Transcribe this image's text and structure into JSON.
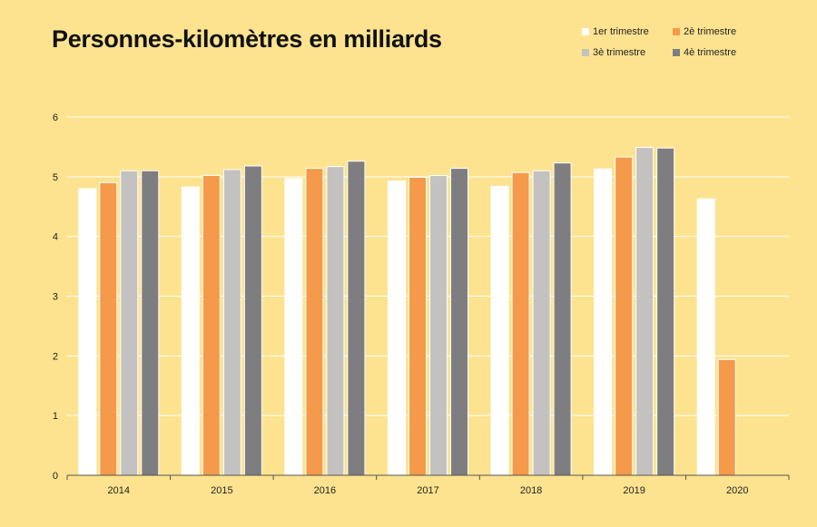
{
  "title": "Personnes-kilomètres en milliards",
  "legend": [
    {
      "label": "1er trimestre",
      "color": "#ffffff"
    },
    {
      "label": "2è trimestre",
      "color": "#f49a4a"
    },
    {
      "label": "3è trimestre",
      "color": "#c4c2c0"
    },
    {
      "label": "4è trimestre",
      "color": "#7e7e80"
    }
  ],
  "chart_data": {
    "type": "bar",
    "title": "Personnes-kilomètres en milliards",
    "xlabel": "",
    "ylabel": "",
    "categories": [
      "2014",
      "2015",
      "2016",
      "2017",
      "2018",
      "2019",
      "2020"
    ],
    "ylim": [
      0,
      6
    ],
    "yticks": [
      0,
      1,
      2,
      3,
      4,
      5,
      6
    ],
    "grid": true,
    "legend_position": "top-right",
    "series": [
      {
        "name": "1er trimestre",
        "color": "#ffffff",
        "values": [
          4.8,
          4.83,
          4.97,
          4.93,
          4.84,
          5.13,
          4.63
        ]
      },
      {
        "name": "2è trimestre",
        "color": "#f49a4a",
        "values": [
          4.9,
          5.02,
          5.14,
          4.99,
          5.07,
          5.33,
          1.94
        ]
      },
      {
        "name": "3è trimestre",
        "color": "#c4c2c0",
        "values": [
          5.1,
          5.12,
          5.17,
          5.02,
          5.1,
          5.49,
          null
        ]
      },
      {
        "name": "4è trimestre",
        "color": "#7e7e80",
        "values": [
          5.1,
          5.18,
          5.26,
          5.14,
          5.23,
          5.48,
          null
        ]
      }
    ]
  }
}
